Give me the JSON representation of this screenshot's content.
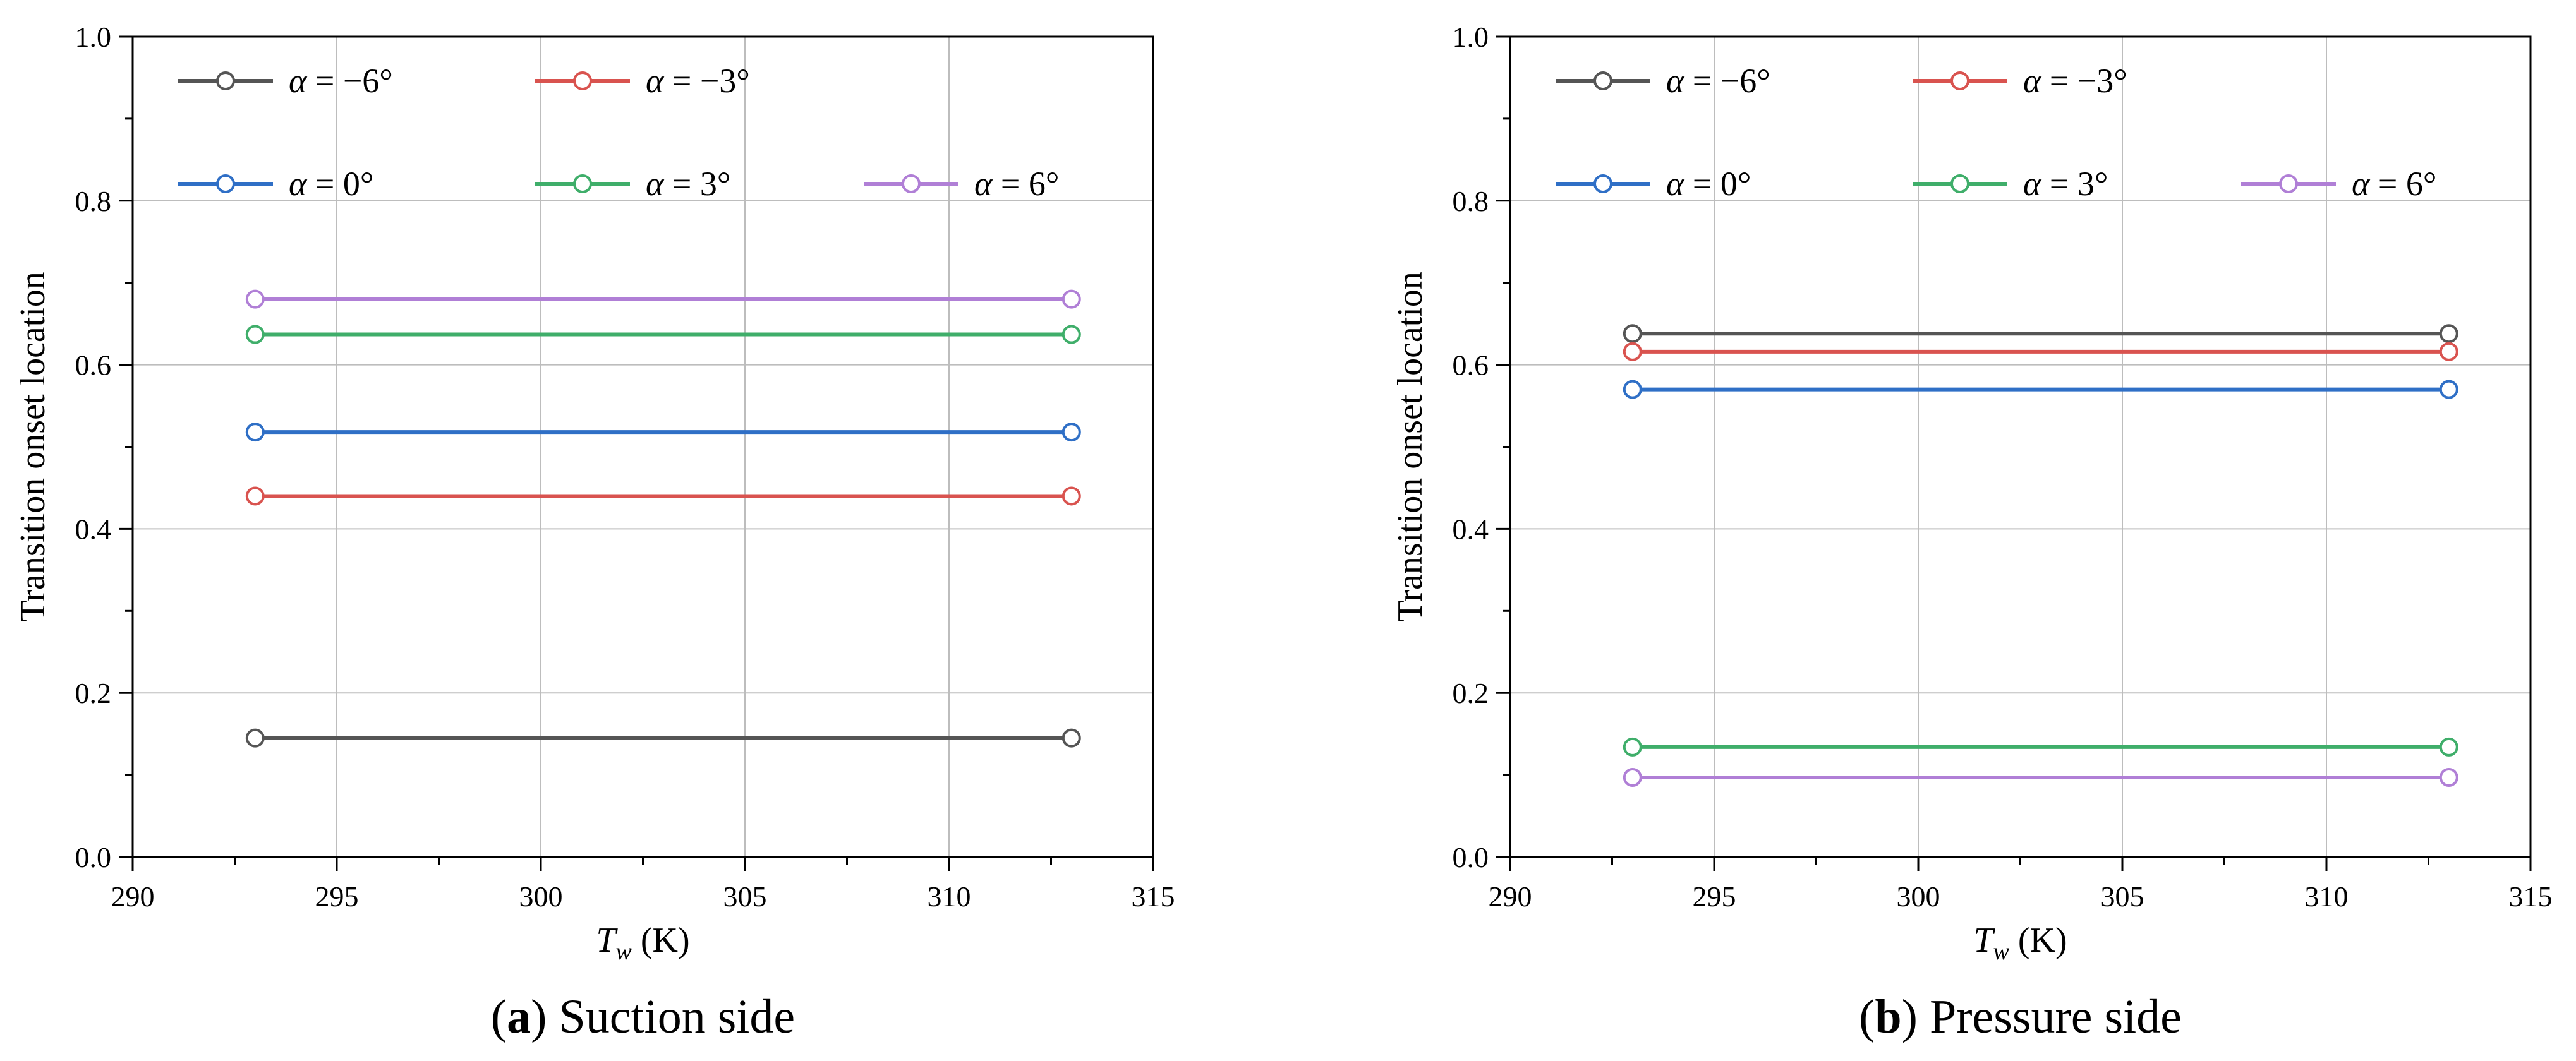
{
  "chart_data": [
    {
      "type": "line",
      "panel": "a",
      "caption_label": "a",
      "caption_text": " Suction side",
      "xlabel": "T",
      "xlabel_sub": "w",
      "xlabel_unit": " (K)",
      "ylabel": "Transition onset location",
      "xlim": [
        290,
        315
      ],
      "ylim": [
        0,
        1.0
      ],
      "xticks": [
        "290",
        "295",
        "300",
        "305",
        "310",
        "315"
      ],
      "yticks": [
        "0.0",
        "0.2",
        "0.4",
        "0.6",
        "0.8",
        "1.0"
      ],
      "x": [
        293,
        313
      ],
      "series": [
        {
          "name": "α = −6°",
          "greek": "α",
          "rest": " = −6°",
          "color": "#555555",
          "values": [
            0.145,
            0.145
          ]
        },
        {
          "name": "α = −3°",
          "greek": "α",
          "rest": " = −3°",
          "color": "#d9534f",
          "values": [
            0.44,
            0.44
          ]
        },
        {
          "name": "α = 0°",
          "greek": "α",
          "rest": " = 0°",
          "color": "#2f6fc6",
          "values": [
            0.518,
            0.518
          ]
        },
        {
          "name": "α = 3°",
          "greek": "α",
          "rest": " = 3°",
          "color": "#3fae6a",
          "values": [
            0.637,
            0.637
          ]
        },
        {
          "name": "α = 6°",
          "greek": "α",
          "rest": " = 6°",
          "color": "#b07fd6",
          "values": [
            0.68,
            0.68
          ]
        }
      ]
    },
    {
      "type": "line",
      "panel": "b",
      "caption_label": "b",
      "caption_text": " Pressure side",
      "xlabel": "T",
      "xlabel_sub": "w",
      "xlabel_unit": " (K)",
      "ylabel": "Transition onset location",
      "xlim": [
        290,
        315
      ],
      "ylim": [
        0,
        1.0
      ],
      "xticks": [
        "290",
        "295",
        "300",
        "305",
        "310",
        "315"
      ],
      "yticks": [
        "0.0",
        "0.2",
        "0.4",
        "0.6",
        "0.8",
        "1.0"
      ],
      "x": [
        293,
        313
      ],
      "series": [
        {
          "name": "α = −6°",
          "greek": "α",
          "rest": " = −6°",
          "color": "#555555",
          "values": [
            0.638,
            0.638
          ]
        },
        {
          "name": "α = −3°",
          "greek": "α",
          "rest": " = −3°",
          "color": "#d9534f",
          "values": [
            0.616,
            0.616
          ]
        },
        {
          "name": "α = 0°",
          "greek": "α",
          "rest": " = 0°",
          "color": "#2f6fc6",
          "values": [
            0.57,
            0.57
          ]
        },
        {
          "name": "α = 3°",
          "greek": "α",
          "rest": " = 3°",
          "color": "#3fae6a",
          "values": [
            0.134,
            0.134
          ]
        },
        {
          "name": "α = 6°",
          "greek": "α",
          "rest": " = 6°",
          "color": "#b07fd6",
          "values": [
            0.097,
            0.097
          ]
        }
      ]
    }
  ]
}
